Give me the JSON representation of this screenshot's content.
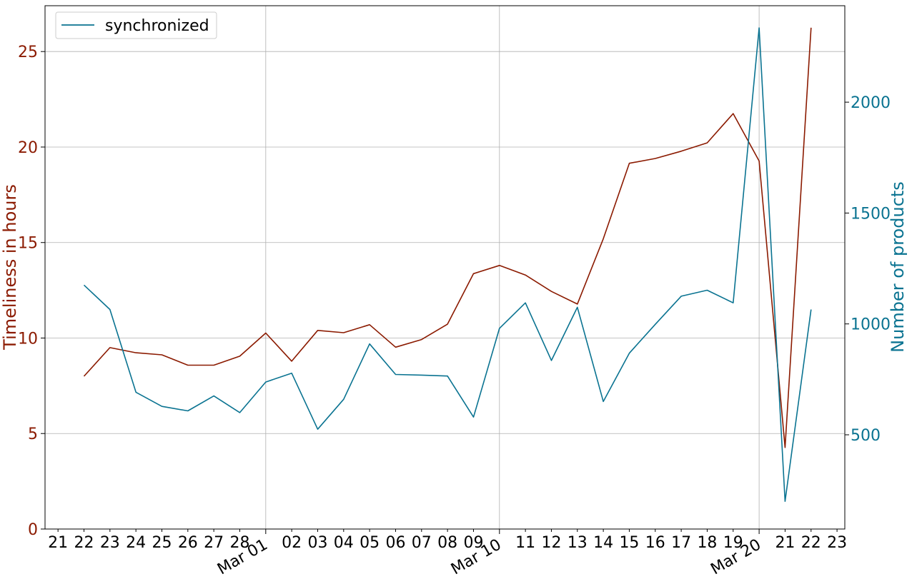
{
  "chart_data": {
    "type": "line",
    "title": "",
    "legend": {
      "placement": "top-left",
      "entries": [
        "synchronized"
      ]
    },
    "grid": true,
    "colors": {
      "left": "#8b1a00",
      "right": "#0a7391",
      "grid": "#b0b0b0",
      "axes": "#000000"
    },
    "x": {
      "kind": "date",
      "range": [
        "Feb 21",
        "Mar 23"
      ],
      "tick_labels": [
        "21",
        "22",
        "23",
        "24",
        "25",
        "26",
        "27",
        "28",
        "Mar 01",
        "02",
        "03",
        "04",
        "05",
        "06",
        "07",
        "08",
        "09",
        "Mar 10",
        "11",
        "12",
        "13",
        "14",
        "15",
        "16",
        "17",
        "18",
        "19",
        "Mar 20",
        "21",
        "22",
        "23"
      ],
      "major_tick_labels": [
        "Mar 01",
        "Mar 10",
        "Mar 20"
      ]
    },
    "y_left": {
      "label": "Timeliness in hours",
      "range": [
        0,
        27.4
      ],
      "ticks": [
        0,
        5,
        10,
        15,
        20,
        25
      ]
    },
    "y_right": {
      "label": "Number of products",
      "range": [
        75,
        2435
      ],
      "ticks": [
        500,
        1000,
        1500,
        2000
      ]
    },
    "dates": [
      "Feb 22",
      "Feb 23",
      "Feb 24",
      "Feb 25",
      "Feb 26",
      "Feb 27",
      "Feb 28",
      "Mar 01",
      "Mar 02",
      "Mar 03",
      "Mar 04",
      "Mar 05",
      "Mar 06",
      "Mar 07",
      "Mar 08",
      "Mar 09",
      "Mar 10",
      "Mar 11",
      "Mar 12",
      "Mar 13",
      "Mar 14",
      "Mar 15",
      "Mar 16",
      "Mar 17",
      "Mar 18",
      "Mar 19",
      "Mar 20",
      "Mar 21",
      "Mar 22"
    ],
    "series": [
      {
        "axis": "left",
        "values": [
          8.0,
          9.5,
          9.23,
          9.12,
          8.58,
          8.58,
          9.05,
          10.26,
          8.79,
          10.4,
          10.28,
          10.7,
          9.52,
          9.92,
          10.73,
          13.37,
          13.8,
          13.3,
          12.44,
          11.78,
          15.2,
          19.15,
          19.4,
          19.78,
          20.22,
          21.75,
          19.27,
          4.27,
          26.25
        ]
      },
      {
        "axis": "right",
        "name": "synchronized",
        "values": [
          1175,
          1065,
          692,
          628,
          608,
          675,
          600,
          738,
          778,
          525,
          660,
          910,
          772,
          769,
          765,
          580,
          980,
          1095,
          835,
          1075,
          650,
          868,
          998,
          1125,
          1152,
          1095,
          2335,
          200,
          1065
        ]
      }
    ]
  }
}
